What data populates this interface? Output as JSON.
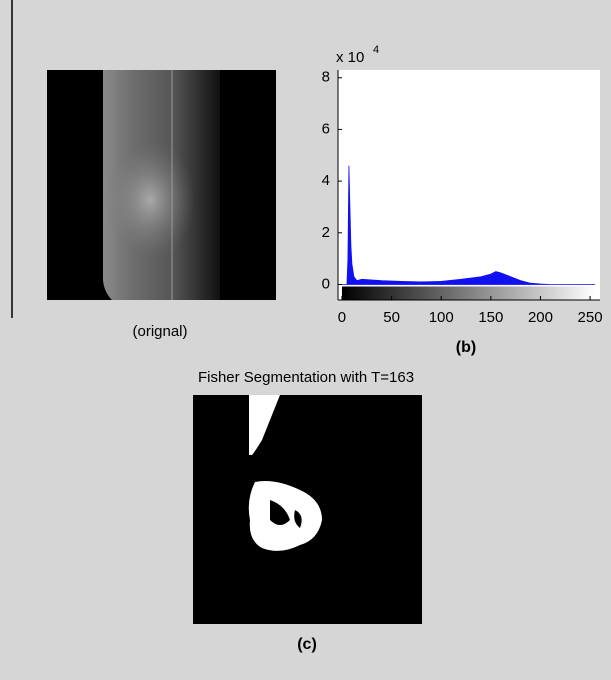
{
  "chart_data": {
    "type": "area",
    "color": "#1010f0",
    "x": [
      0,
      5,
      6,
      7,
      8,
      9,
      10,
      12,
      15,
      20,
      40,
      60,
      80,
      100,
      120,
      130,
      140,
      150,
      155,
      160,
      170,
      180,
      190,
      200,
      210,
      255
    ],
    "values": [
      0,
      0,
      1.0,
      4.6,
      3.0,
      1.5,
      0.8,
      0.3,
      0.15,
      0.2,
      0.15,
      0.12,
      0.1,
      0.12,
      0.2,
      0.25,
      0.3,
      0.4,
      0.5,
      0.45,
      0.3,
      0.15,
      0.05,
      0.02,
      0,
      0
    ],
    "xlim": [
      -4,
      260
    ],
    "ylim": [
      -0.6,
      8.3
    ],
    "xticks": [
      0,
      50,
      100,
      150,
      200,
      250
    ],
    "yticks": [
      0,
      2,
      4,
      6,
      8
    ],
    "y_multiplier": {
      "base": "x 10",
      "exponent": "4"
    },
    "grayscale_colorbar": true
  },
  "labels": {
    "original": "(orignal)",
    "b": "(b)",
    "segmentation_title": "Fisher Segmentation with T=163",
    "c": "(c)"
  }
}
